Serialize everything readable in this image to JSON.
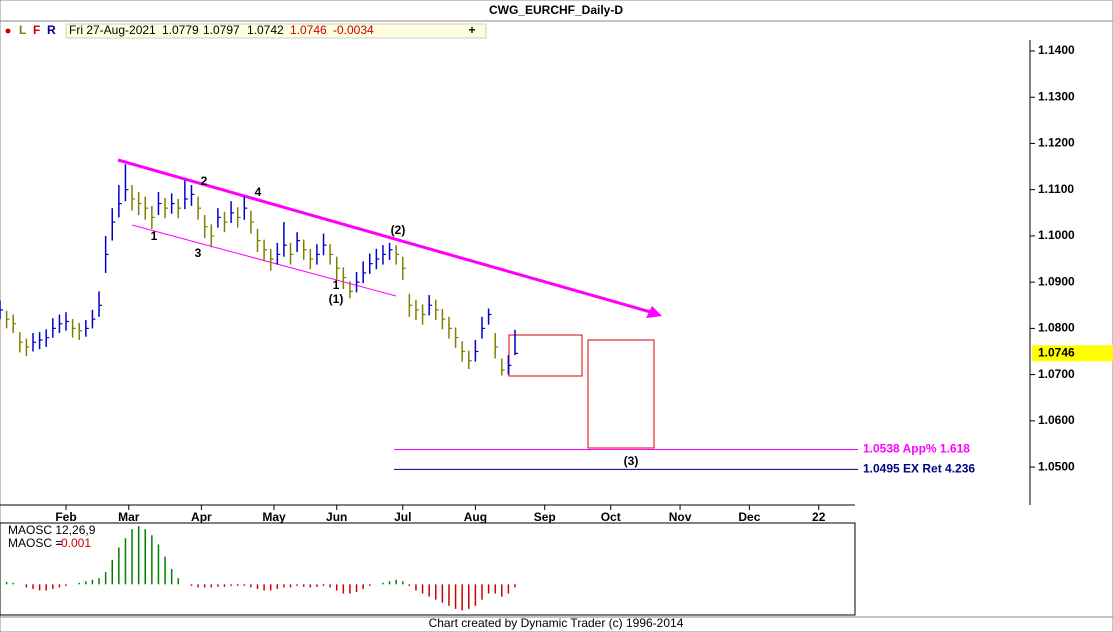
{
  "chart_data": {
    "type": "ohlc",
    "title": "CWG_EURCHF_Daily-D",
    "toolbar": [
      "L",
      "F",
      "R"
    ],
    "header": {
      "date": "Fri 27-Aug-2021",
      "open": 1.0779,
      "change": -0.0034
    },
    "footer": "Chart created by Dynamic Trader  (c) 1996-2014",
    "up_color": "#0000cc",
    "down_color": "#808000",
    "x": [
      0,
      2,
      4,
      6,
      8,
      10,
      12,
      14,
      16,
      18,
      20,
      22,
      24,
      26,
      28,
      30,
      32,
      34,
      36,
      38,
      40,
      42,
      44,
      46,
      48,
      50,
      52,
      54,
      56,
      58,
      60,
      62,
      64,
      66,
      68,
      70,
      72,
      74,
      76,
      78,
      80,
      82,
      84,
      86,
      88,
      90,
      92,
      94,
      96,
      98,
      100,
      102,
      104,
      106,
      108,
      110,
      112,
      114,
      116,
      118,
      120,
      122,
      124,
      126,
      128,
      130,
      132,
      134,
      136,
      138,
      140,
      142,
      144,
      146,
      148,
      150,
      152,
      154,
      156
    ],
    "close": [
      1.084,
      1.082,
      1.081,
      1.077,
      1.076,
      1.077,
      1.0775,
      1.078,
      1.08,
      1.081,
      1.0815,
      1.08,
      1.0795,
      1.08,
      1.082,
      1.085,
      1.096,
      1.103,
      1.107,
      1.11,
      1.108,
      1.107,
      1.106,
      1.104,
      1.107,
      1.106,
      1.107,
      1.106,
      1.108,
      1.109,
      1.106,
      1.102,
      1.1,
      1.104,
      1.103,
      1.105,
      1.104,
      1.106,
      1.103,
      1.099,
      1.097,
      1.095,
      1.096,
      1.098,
      1.096,
      1.099,
      1.097,
      1.095,
      1.096,
      1.098,
      1.096,
      1.093,
      1.091,
      1.088,
      1.09,
      1.092,
      1.094,
      1.095,
      1.096,
      1.097,
      1.096,
      1.093,
      1.085,
      1.084,
      1.083,
      1.085,
      1.084,
      1.082,
      1.08,
      1.078,
      1.075,
      1.073,
      1.075,
      1.08,
      1.083,
      1.076,
      1.071,
      1.072,
      1.0746
    ],
    "high": [
      1.086,
      1.0838,
      1.083,
      1.0792,
      1.0778,
      1.079,
      1.0792,
      1.0798,
      1.0822,
      1.083,
      1.0835,
      1.082,
      1.0812,
      1.0818,
      1.084,
      1.088,
      1.1,
      1.106,
      1.111,
      1.1155,
      1.111,
      1.1095,
      1.1085,
      1.1065,
      1.1095,
      1.1082,
      1.1092,
      1.108,
      1.112,
      1.111,
      1.1085,
      1.1045,
      1.1025,
      1.106,
      1.1052,
      1.1075,
      1.1062,
      1.1085,
      1.1055,
      1.1015,
      1.0992,
      1.0972,
      1.0985,
      1.103,
      1.0985,
      1.1008,
      1.0992,
      1.0972,
      1.0982,
      1.1005,
      1.0982,
      1.0955,
      1.0932,
      1.0902,
      1.0922,
      1.0945,
      1.0962,
      1.0972,
      1.098,
      1.0985,
      1.098,
      1.0955,
      1.0875,
      1.0862,
      1.0852,
      1.0872,
      1.0862,
      1.0842,
      1.0825,
      1.0802,
      1.0772,
      1.0752,
      1.0775,
      1.0825,
      1.0843,
      1.079,
      1.0735,
      1.0742,
      1.0797
    ],
    "low": [
      1.082,
      1.08,
      1.079,
      1.0748,
      1.074,
      1.075,
      1.0755,
      1.076,
      1.078,
      1.079,
      1.0795,
      1.078,
      1.0775,
      1.0782,
      1.08,
      1.0825,
      1.092,
      1.099,
      1.104,
      1.1075,
      1.1055,
      1.1045,
      1.1035,
      1.1015,
      1.1045,
      1.1038,
      1.1048,
      1.1038,
      1.1058,
      1.1065,
      1.1035,
      1.0995,
      1.0975,
      1.1018,
      1.1008,
      1.1028,
      1.1018,
      1.1035,
      1.1005,
      1.0965,
      1.0945,
      1.0925,
      1.0938,
      1.0955,
      1.0938,
      1.0965,
      1.0948,
      1.0928,
      1.0938,
      1.0958,
      1.0938,
      1.0905,
      1.0885,
      1.0865,
      1.0878,
      1.0898,
      1.0918,
      1.0928,
      1.0938,
      1.0948,
      1.0938,
      1.0905,
      1.0825,
      1.0818,
      1.0808,
      1.0828,
      1.0818,
      1.0798,
      1.0778,
      1.0758,
      1.0728,
      1.0712,
      1.0728,
      1.0778,
      1.0808,
      1.0735,
      1.0698,
      1.07,
      1.0742
    ],
    "xlim": [
      0,
      312
    ],
    "xticks": [
      {
        "value": 20,
        "label": "Feb"
      },
      {
        "value": 39,
        "label": "Mar"
      },
      {
        "value": 61,
        "label": "Apr"
      },
      {
        "value": 83,
        "label": "May"
      },
      {
        "value": 102,
        "label": "Jun"
      },
      {
        "value": 122,
        "label": "Jul"
      },
      {
        "value": 144,
        "label": "Aug"
      },
      {
        "value": 165,
        "label": "Sep"
      },
      {
        "value": 185,
        "label": "Oct"
      },
      {
        "value": 206,
        "label": "Nov"
      },
      {
        "value": 227,
        "label": "Dec"
      },
      {
        "value": 248,
        "label": "22"
      }
    ],
    "ylim": [
      1.0418,
      1.1467
    ],
    "yticks": [
      {
        "value": 1.14,
        "label": "1.1400"
      },
      {
        "value": 1.13,
        "label": "1.1300"
      },
      {
        "value": 1.12,
        "label": "1.1200"
      },
      {
        "value": 1.11,
        "label": "1.1100"
      },
      {
        "value": 1.1,
        "label": "1.1000"
      },
      {
        "value": 1.09,
        "label": "1.0900"
      },
      {
        "value": 1.08,
        "label": "1.0800"
      },
      {
        "value": 1.07,
        "label": "1.0700"
      },
      {
        "value": 1.06,
        "label": "1.0600"
      },
      {
        "value": 1.05,
        "label": "1.0500"
      }
    ],
    "levels": [
      {
        "value": 1.0538,
        "label": "1.0538 App% 1.618",
        "color": "#ff00ff"
      },
      {
        "value": 1.0495,
        "label": "1.0495 EX Ret 4.236",
        "color": "#000080"
      }
    ],
    "annotations": [
      "1",
      "2",
      "3",
      "4",
      "1",
      "(1)",
      "(2)",
      "(3)"
    ],
    "indicator": {
      "type": "histogram",
      "name": "MAOSC 12,26,9",
      "value_label": "MAOSC =",
      "up_color": "#008000",
      "down_color": "#cc0000",
      "ylim": [
        -0.01,
        0.02
      ],
      "values": [
        0.001,
        0.0008,
        0.0005,
        0,
        -0.001,
        -0.0015,
        -0.002,
        -0.002,
        -0.0015,
        -0.001,
        -0.0005,
        0,
        0.0005,
        0.001,
        0.0015,
        0.002,
        0.004,
        0.008,
        0.012,
        0.015,
        0.018,
        0.019,
        0.018,
        0.016,
        0.013,
        0.009,
        0.005,
        0.002,
        0,
        -0.0005,
        -0.001,
        -0.001,
        -0.001,
        -0.0008,
        -0.0008,
        -0.0005,
        -0.0005,
        -0.0005,
        -0.001,
        -0.0015,
        -0.002,
        -0.002,
        -0.0015,
        -0.001,
        -0.001,
        -0.0005,
        -0.0008,
        -0.001,
        -0.0008,
        -0.0005,
        -0.001,
        -0.002,
        -0.003,
        -0.003,
        -0.0025,
        -0.0015,
        -0.0005,
        0,
        0.0005,
        0.001,
        0.0015,
        0.001,
        -0.0005,
        -0.002,
        -0.003,
        -0.004,
        -0.005,
        -0.006,
        -0.007,
        -0.008,
        -0.0085,
        -0.008,
        -0.007,
        -0.005,
        -0.003,
        -0.003,
        -0.004,
        -0.003,
        -0.001
      ]
    }
  }
}
